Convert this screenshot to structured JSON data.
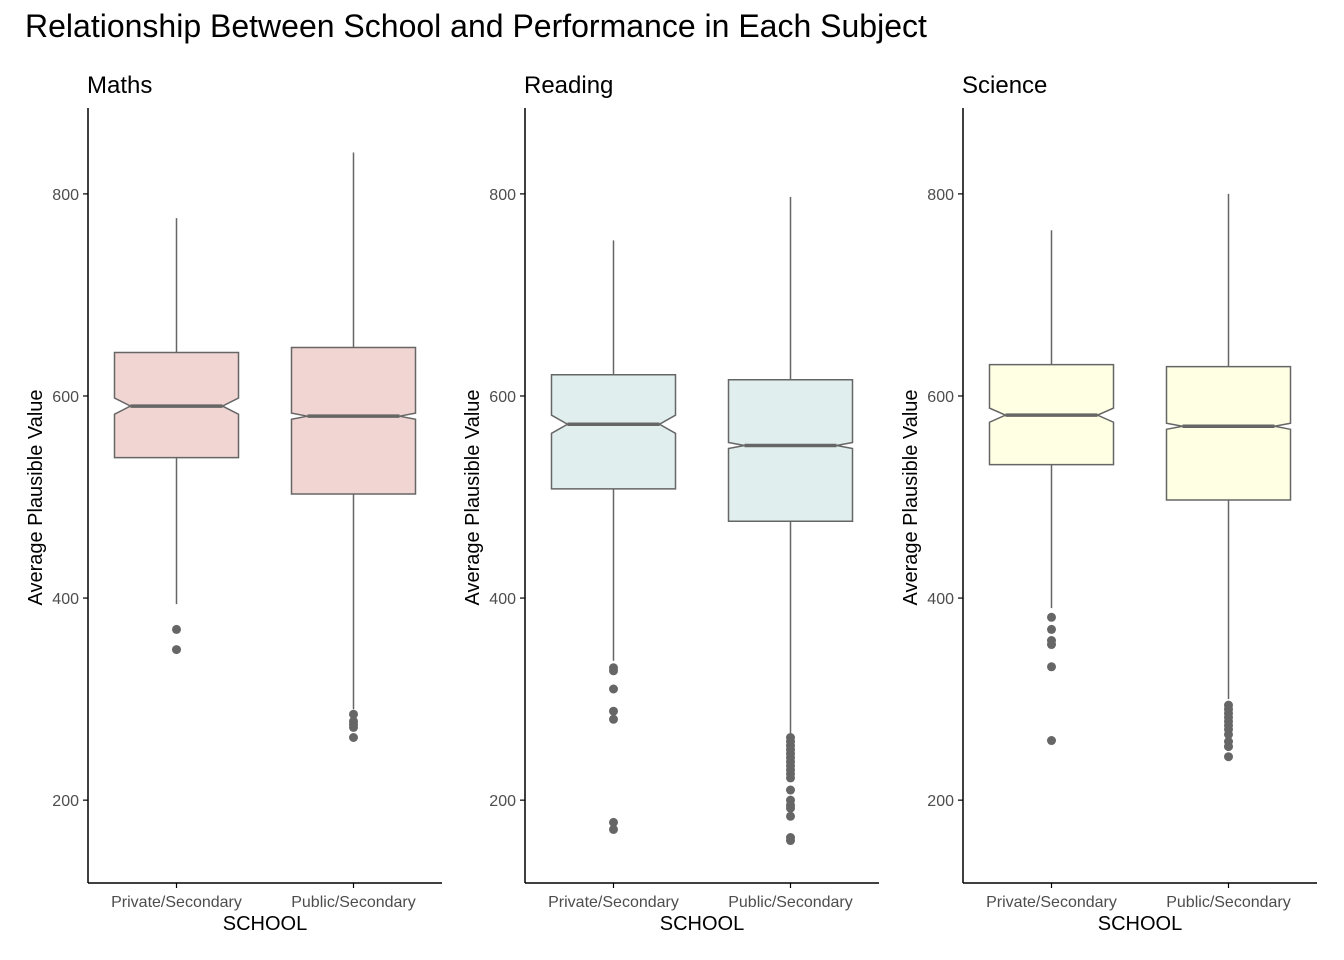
{
  "title": "Relationship Between School and Performance in Each Subject",
  "colors": {
    "Maths": "#f0d5d2",
    "Reading": "#e0eeed",
    "Science": "#ffffe3",
    "stroke": "#666666",
    "axis": "#000000",
    "tick_label": "#4d4d4d"
  },
  "chart_data": [
    {
      "type": "boxplot",
      "title": "Maths",
      "xlabel": "SCHOOL",
      "ylabel": "Average Plausible Value",
      "ylim": [
        118,
        885
      ],
      "yticks": [
        200,
        400,
        600,
        800
      ],
      "categories": [
        "Private/Secondary",
        "Public/Secondary"
      ],
      "boxes": [
        {
          "category": "Private/Secondary",
          "lower_whisker": 394,
          "q1": 539,
          "median": 590,
          "q3": 643,
          "upper_whisker": 776,
          "notch_low": 582,
          "notch_high": 598,
          "outliers": [
            369,
            349
          ]
        },
        {
          "category": "Public/Secondary",
          "lower_whisker": 290,
          "q1": 503,
          "median": 580,
          "q3": 648,
          "upper_whisker": 841,
          "notch_low": 577,
          "notch_high": 583,
          "outliers": [
            285,
            278,
            275,
            272,
            262
          ]
        }
      ]
    },
    {
      "type": "boxplot",
      "title": "Reading",
      "xlabel": "SCHOOL",
      "ylabel": "Average Plausible Value",
      "ylim": [
        118,
        885
      ],
      "yticks": [
        200,
        400,
        600,
        800
      ],
      "categories": [
        "Private/Secondary",
        "Public/Secondary"
      ],
      "boxes": [
        {
          "category": "Private/Secondary",
          "lower_whisker": 338,
          "q1": 508,
          "median": 572,
          "q3": 621,
          "upper_whisker": 754,
          "notch_low": 563,
          "notch_high": 581,
          "outliers": [
            331,
            328,
            310,
            288,
            280,
            178,
            171
          ]
        },
        {
          "category": "Public/Secondary",
          "lower_whisker": 265,
          "q1": 476,
          "median": 551,
          "q3": 616,
          "upper_whisker": 797,
          "notch_low": 548,
          "notch_high": 554,
          "outliers": [
            262,
            258,
            254,
            250,
            246,
            242,
            238,
            234,
            230,
            226,
            222,
            210,
            200,
            195,
            192,
            184,
            163,
            160
          ]
        }
      ]
    },
    {
      "type": "boxplot",
      "title": "Science",
      "xlabel": "SCHOOL",
      "ylabel": "Average Plausible Value",
      "ylim": [
        118,
        885
      ],
      "yticks": [
        200,
        400,
        600,
        800
      ],
      "categories": [
        "Private/Secondary",
        "Public/Secondary"
      ],
      "boxes": [
        {
          "category": "Private/Secondary",
          "lower_whisker": 390,
          "q1": 532,
          "median": 581,
          "q3": 631,
          "upper_whisker": 764,
          "notch_low": 574,
          "notch_high": 588,
          "outliers": [
            381,
            369,
            358,
            354,
            332,
            259
          ]
        },
        {
          "category": "Public/Secondary",
          "lower_whisker": 300,
          "q1": 497,
          "median": 570,
          "q3": 629,
          "upper_whisker": 800,
          "notch_low": 567,
          "notch_high": 573,
          "outliers": [
            294,
            290,
            286,
            282,
            278,
            274,
            270,
            265,
            258,
            253,
            243
          ]
        }
      ]
    }
  ]
}
